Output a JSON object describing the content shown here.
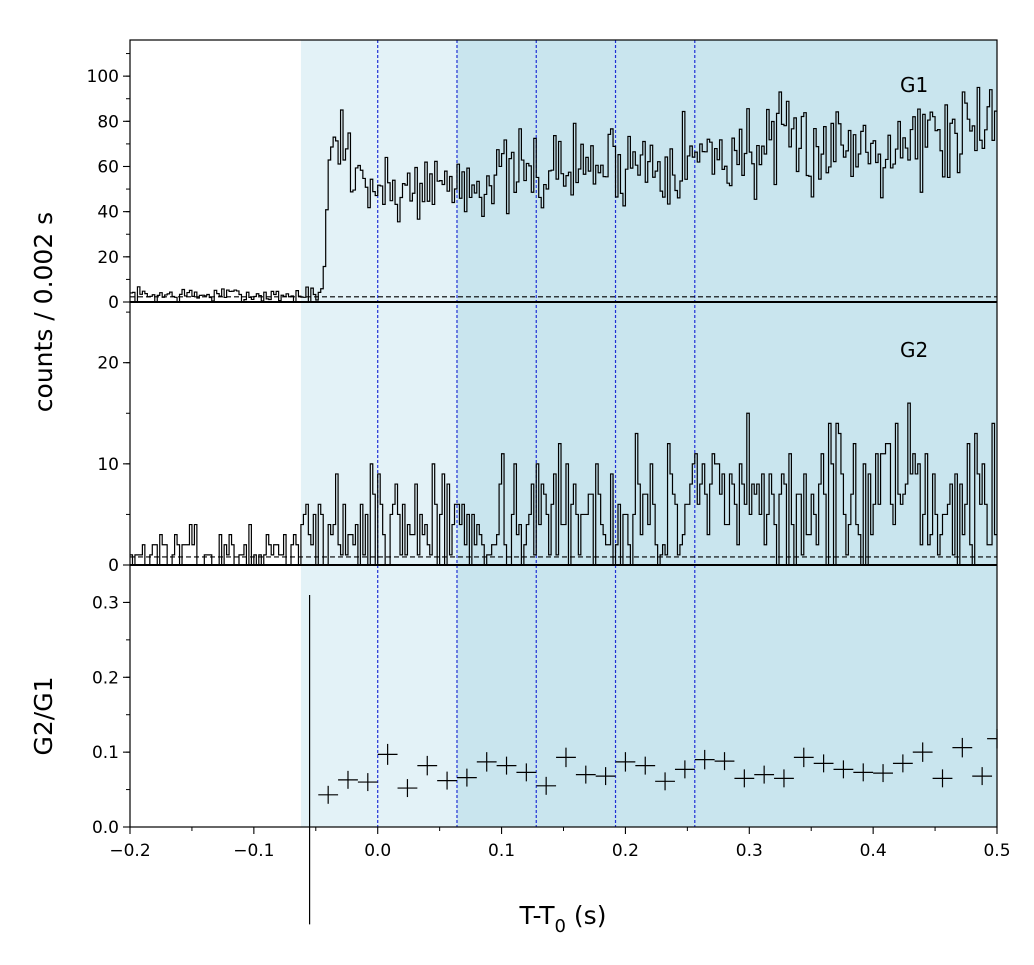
{
  "chart_data": {
    "type": "line",
    "xlabel_main": "T-T",
    "xlabel_sub": "0",
    "xlabel_unit": " (s)",
    "ylabel_counts": "counts /  0.002 s",
    "ylabel_ratio": "G2/G1",
    "xlim": [
      -0.2,
      0.5
    ],
    "xticks": [
      -0.2,
      -0.1,
      0.0,
      0.1,
      0.2,
      0.3,
      0.4,
      0.5
    ],
    "xtick_labels": [
      "−0.2",
      "−0.1",
      "0.0",
      "0.1",
      "0.2",
      "0.3",
      "0.4",
      "0.5"
    ],
    "bin_width": 0.002,
    "shaded_regions": [
      {
        "x0": -0.062,
        "x1": 0.064,
        "color": "#e3f2f7"
      },
      {
        "x0": 0.064,
        "x1": 0.5,
        "color": "#c9e5ee"
      }
    ],
    "vertical_lines": [
      0.0,
      0.064,
      0.128,
      0.192,
      0.256
    ],
    "vline_color": "#1f2fd6",
    "panels": [
      {
        "name": "G1",
        "label": "G1",
        "ylim": [
          0,
          116
        ],
        "yticks": [
          0,
          20,
          40,
          60,
          80,
          100
        ],
        "ytick_labels": [
          "0",
          "20",
          "40",
          "60",
          "80",
          "100"
        ],
        "background_level": 2.3,
        "anchors": [
          [
            -0.2,
            3
          ],
          [
            -0.1,
            3
          ],
          [
            -0.045,
            3
          ],
          [
            -0.042,
            25
          ],
          [
            -0.038,
            65
          ],
          [
            -0.03,
            72
          ],
          [
            -0.025,
            65
          ],
          [
            -0.018,
            58
          ],
          [
            -0.005,
            52
          ],
          [
            0.01,
            48
          ],
          [
            0.03,
            52
          ],
          [
            0.06,
            53
          ],
          [
            0.1,
            55
          ],
          [
            0.13,
            57
          ],
          [
            0.16,
            60
          ],
          [
            0.2,
            62
          ],
          [
            0.25,
            64
          ],
          [
            0.3,
            67
          ],
          [
            0.35,
            69
          ],
          [
            0.4,
            71
          ],
          [
            0.45,
            73
          ],
          [
            0.5,
            75
          ]
        ],
        "fixed_bins": [
          [
            -0.028,
            85
          ],
          [
            -0.032,
            76
          ],
          [
            -0.036,
            73
          ],
          [
            0.474,
            93
          ],
          [
            0.486,
            95
          ],
          [
            0.496,
            94
          ],
          [
            0.468,
            54
          ]
        ],
        "noise_rel": 0.13,
        "noise_abs": 1.5,
        "seed": 7
      },
      {
        "name": "G2",
        "label": "G2",
        "ylim": [
          0,
          26
        ],
        "yticks": [
          0,
          10,
          20
        ],
        "ytick_labels": [
          "0",
          "10",
          "20"
        ],
        "background_level": 0.8,
        "anchors": [
          [
            -0.2,
            1
          ],
          [
            -0.065,
            1
          ],
          [
            -0.055,
            3
          ],
          [
            -0.03,
            3.5
          ],
          [
            0.0,
            4
          ],
          [
            0.05,
            4
          ],
          [
            0.1,
            4.5
          ],
          [
            0.2,
            5
          ],
          [
            0.3,
            5.5
          ],
          [
            0.4,
            6
          ],
          [
            0.5,
            6.5
          ]
        ],
        "fixed_bins": [
          [
            -0.052,
            5
          ],
          [
            -0.05,
            0
          ],
          [
            0.246,
            0
          ],
          [
            0.478,
            12
          ],
          [
            0.498,
            14
          ]
        ],
        "integer": true,
        "noise_rel": 0.55,
        "noise_abs": 0.8,
        "seed": 13
      },
      {
        "name": "G2/G1",
        "label": "",
        "ylim": [
          0,
          0.35
        ],
        "yticks": [
          0.0,
          0.1,
          0.2,
          0.3
        ],
        "ytick_labels": [
          "0.0",
          "0.1",
          "0.2",
          "0.3"
        ],
        "ratio_points": {
          "x": [
            -0.055,
            -0.04,
            -0.024,
            -0.008,
            0.008,
            0.024,
            0.04,
            0.056,
            0.072,
            0.088,
            0.104,
            0.12,
            0.136,
            0.152,
            0.168,
            0.184,
            0.2,
            0.216,
            0.232,
            0.248,
            0.264,
            0.28,
            0.296,
            0.312,
            0.328,
            0.344,
            0.36,
            0.376,
            0.392,
            0.408,
            0.424,
            0.44,
            0.456,
            0.472,
            0.488,
            0.5
          ],
          "y": [
            0.09,
            0.043,
            0.063,
            0.06,
            0.097,
            0.052,
            0.082,
            0.062,
            0.066,
            0.087,
            0.082,
            0.073,
            0.055,
            0.093,
            0.07,
            0.068,
            0.087,
            0.082,
            0.061,
            0.077,
            0.09,
            0.088,
            0.065,
            0.07,
            0.065,
            0.093,
            0.085,
            0.077,
            0.073,
            0.072,
            0.085,
            0.1,
            0.065,
            0.106,
            0.068,
            0.118
          ],
          "yerr": [
            0.22,
            0.012,
            0.012,
            0.012,
            0.014,
            0.012,
            0.013,
            0.012,
            0.012,
            0.013,
            0.012,
            0.012,
            0.012,
            0.013,
            0.012,
            0.012,
            0.013,
            0.012,
            0.012,
            0.012,
            0.013,
            0.012,
            0.012,
            0.012,
            0.012,
            0.013,
            0.012,
            0.012,
            0.012,
            0.012,
            0.012,
            0.013,
            0.012,
            0.013,
            0.012,
            0.013
          ],
          "xerr": 0.008
        }
      }
    ]
  }
}
